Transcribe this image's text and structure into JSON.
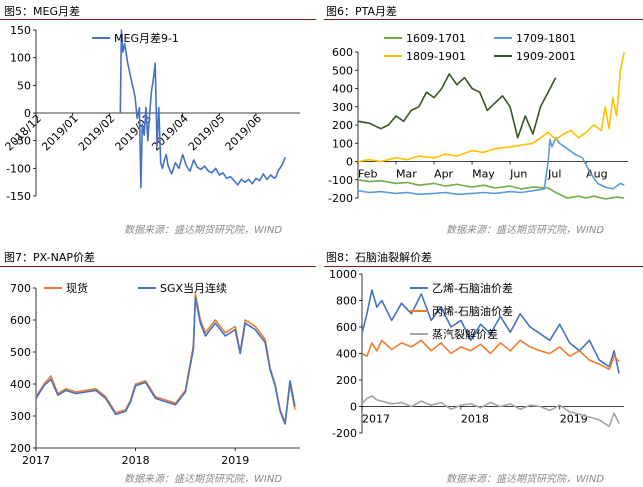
{
  "panels": {
    "p1": {
      "title": "图5：MEG月差"
    },
    "p2": {
      "title": "图6：PTA月差"
    },
    "p3": {
      "title": "图7：PX-NAP价差"
    },
    "p4": {
      "title": "图8：石脑油裂解价差"
    }
  },
  "source_left": "数据来源：盛达期货研究院，WIND",
  "source_right": "数据来源：盛达期货研究院，WIND",
  "colors": {
    "rule": "#7a1e20",
    "blue": "#4472c4",
    "orange": "#ed7d31",
    "gray": "#a5a5a5",
    "lightblue": "#5b9bd5",
    "green": "#70ad47",
    "yellow": "#ffc000",
    "darkgreen": "#375623"
  },
  "chart_data": [
    {
      "id": "meg",
      "type": "line",
      "ylim": [
        -150,
        150
      ],
      "yticks": [
        "150",
        "100",
        "50",
        "0",
        "-50",
        "-100",
        "-150"
      ],
      "ytick_values": [
        150,
        100,
        50,
        0,
        -50,
        -100,
        -150
      ],
      "x_tick_labels": [
        "2018/12",
        "2019/01",
        "2019/02",
        "2019/03",
        "2019/04",
        "2019/05",
        "2019/06"
      ],
      "x_tick_positions": [
        0,
        1,
        2,
        3,
        4,
        5,
        6
      ],
      "xlim": [
        0,
        7.2
      ],
      "legend": "top",
      "series": [
        {
          "name": "MEG月差9-1",
          "color": "#4472c4",
          "x": [
            2.3,
            2.33,
            2.37,
            2.42,
            2.5,
            2.6,
            2.7,
            2.76,
            2.82,
            2.86,
            2.9,
            2.95,
            3.0,
            3.05,
            3.1,
            3.15,
            3.2,
            3.25,
            3.3,
            3.35,
            3.4,
            3.45,
            3.5,
            3.55,
            3.6,
            3.7,
            3.8,
            3.9,
            4.0,
            4.1,
            4.2,
            4.3,
            4.4,
            4.5,
            4.6,
            4.7,
            4.8,
            4.9,
            5.0,
            5.1,
            5.2,
            5.3,
            5.4,
            5.5,
            5.6,
            5.7,
            5.8,
            5.9,
            6.0,
            6.1,
            6.2,
            6.3,
            6.4,
            6.5,
            6.55,
            6.6,
            6.7,
            6.8
          ],
          "y": [
            0,
            150,
            110,
            125,
            90,
            60,
            30,
            -10,
            10,
            -135,
            -20,
            -40,
            10,
            -50,
            0,
            40,
            60,
            90,
            -60,
            10,
            -90,
            -100,
            -85,
            -75,
            -95,
            -110,
            -90,
            -100,
            -75,
            -95,
            -105,
            -85,
            -98,
            -102,
            -96,
            -105,
            -108,
            -100,
            -112,
            -108,
            -118,
            -115,
            -122,
            -130,
            -120,
            -125,
            -120,
            -128,
            -118,
            -122,
            -110,
            -120,
            -112,
            -118,
            -115,
            -105,
            -95,
            -80
          ]
        }
      ]
    },
    {
      "id": "pta",
      "type": "line",
      "ylim": [
        -200,
        600
      ],
      "yticks": [
        "600",
        "500",
        "400",
        "300",
        "200",
        "100",
        "0",
        "-100",
        "-200"
      ],
      "ytick_values": [
        600,
        500,
        400,
        300,
        200,
        100,
        0,
        -100,
        -200
      ],
      "x_tick_labels": [
        "Feb",
        "Mar",
        "Apr",
        "May",
        "Jun",
        "Jul",
        "Aug"
      ],
      "x_tick_positions": [
        0,
        1,
        2,
        3,
        4,
        5,
        6
      ],
      "xlim": [
        0,
        7.1
      ],
      "legend": "top",
      "series": [
        {
          "name": "1609-1701",
          "color": "#70ad47",
          "x": [
            0,
            0.3,
            0.6,
            1.0,
            1.3,
            1.6,
            2.0,
            2.3,
            2.6,
            3.0,
            3.3,
            3.6,
            4.0,
            4.3,
            4.6,
            5.0,
            5.2,
            5.5,
            5.8,
            6.0,
            6.2,
            6.5,
            6.8,
            7.0
          ],
          "y": [
            -100,
            -110,
            -105,
            -120,
            -115,
            -130,
            -120,
            -135,
            -125,
            -140,
            -130,
            -145,
            -135,
            -150,
            -140,
            -145,
            -170,
            -200,
            -190,
            -200,
            -190,
            -205,
            -195,
            -200
          ]
        },
        {
          "name": "1709-1801",
          "color": "#5b9bd5",
          "x": [
            0,
            0.3,
            0.6,
            1.0,
            1.3,
            1.6,
            2.0,
            2.3,
            2.6,
            3.0,
            3.3,
            3.6,
            4.0,
            4.3,
            4.6,
            4.9,
            5.0,
            5.05,
            5.1,
            5.2,
            5.3,
            5.5,
            5.7,
            5.9,
            6.1,
            6.3,
            6.5,
            6.7,
            6.9,
            7.0
          ],
          "y": [
            -160,
            -170,
            -165,
            -175,
            -170,
            -180,
            -175,
            -170,
            -180,
            -175,
            -170,
            -175,
            -165,
            -170,
            -160,
            -150,
            0,
            120,
            80,
            130,
            100,
            70,
            40,
            20,
            -60,
            -120,
            -140,
            -150,
            -120,
            -130
          ]
        },
        {
          "name": "1809-1901",
          "color": "#ffc000",
          "x": [
            0,
            0.3,
            0.6,
            1.0,
            1.3,
            1.6,
            2.0,
            2.3,
            2.6,
            3.0,
            3.3,
            3.6,
            4.0,
            4.3,
            4.6,
            5.0,
            5.2,
            5.4,
            5.6,
            5.8,
            6.0,
            6.2,
            6.4,
            6.5,
            6.6,
            6.7,
            6.8,
            6.9,
            7.0
          ],
          "y": [
            0,
            10,
            0,
            20,
            10,
            30,
            20,
            40,
            30,
            60,
            50,
            70,
            80,
            90,
            100,
            160,
            120,
            150,
            170,
            130,
            160,
            200,
            170,
            300,
            180,
            350,
            250,
            500,
            600
          ]
        },
        {
          "name": "1909-2001",
          "color": "#375623",
          "x": [
            0,
            0.3,
            0.6,
            0.8,
            1.0,
            1.2,
            1.4,
            1.6,
            1.8,
            2.0,
            2.2,
            2.4,
            2.6,
            2.8,
            3.0,
            3.2,
            3.4,
            3.6,
            3.8,
            4.0,
            4.2,
            4.4,
            4.6,
            4.8,
            5.0,
            5.2
          ],
          "y": [
            220,
            210,
            180,
            200,
            250,
            220,
            280,
            300,
            380,
            350,
            400,
            480,
            420,
            460,
            400,
            380,
            280,
            320,
            360,
            300,
            130,
            250,
            150,
            300,
            380,
            460
          ]
        }
      ]
    },
    {
      "id": "pxnap",
      "type": "line",
      "ylim": [
        200,
        700
      ],
      "yticks": [
        "700",
        "600",
        "500",
        "400",
        "300",
        "200"
      ],
      "ytick_values": [
        700,
        600,
        500,
        400,
        300,
        200
      ],
      "x_tick_labels": [
        "2017",
        "2018",
        "2019"
      ],
      "x_tick_positions": [
        0,
        1,
        2
      ],
      "xlim": [
        0,
        2.65
      ],
      "legend": "top-left",
      "series": [
        {
          "name": "现货",
          "color": "#ed7d31",
          "x": [
            0,
            0.08,
            0.15,
            0.22,
            0.3,
            0.4,
            0.5,
            0.6,
            0.7,
            0.8,
            0.9,
            0.95,
            1.0,
            1.1,
            1.2,
            1.3,
            1.4,
            1.5,
            1.58,
            1.6,
            1.65,
            1.7,
            1.8,
            1.9,
            2.0,
            2.05,
            2.1,
            2.2,
            2.3,
            2.35,
            2.4,
            2.45,
            2.5,
            2.55,
            2.6
          ],
          "y": [
            360,
            400,
            425,
            370,
            385,
            375,
            380,
            385,
            360,
            310,
            320,
            350,
            400,
            410,
            360,
            350,
            340,
            380,
            520,
            680,
            600,
            560,
            600,
            560,
            580,
            500,
            600,
            580,
            540,
            450,
            400,
            320,
            280,
            400,
            320
          ]
        },
        {
          "name": "SGX当月连续",
          "color": "#4472c4",
          "x": [
            0,
            0.08,
            0.15,
            0.22,
            0.3,
            0.4,
            0.5,
            0.6,
            0.7,
            0.8,
            0.9,
            0.95,
            1.0,
            1.1,
            1.2,
            1.3,
            1.4,
            1.5,
            1.58,
            1.6,
            1.65,
            1.7,
            1.8,
            1.9,
            2.0,
            2.05,
            2.1,
            2.2,
            2.3,
            2.35,
            2.4,
            2.45,
            2.5,
            2.55,
            2.6
          ],
          "y": [
            355,
            395,
            415,
            365,
            380,
            370,
            375,
            380,
            355,
            305,
            315,
            345,
            395,
            405,
            355,
            345,
            335,
            375,
            510,
            670,
            590,
            550,
            590,
            550,
            570,
            495,
            590,
            570,
            530,
            445,
            395,
            315,
            275,
            410,
            330
          ]
        }
      ]
    },
    {
      "id": "naphtha",
      "type": "line",
      "ylim": [
        -200,
        1000
      ],
      "yticks": [
        "1000",
        "800",
        "600",
        "400",
        "200",
        "0",
        "-200"
      ],
      "ytick_values": [
        1000,
        800,
        600,
        400,
        200,
        0,
        -200
      ],
      "x_tick_labels": [
        "2017",
        "2018",
        "2019"
      ],
      "x_tick_positions": [
        0,
        1,
        2
      ],
      "xlim": [
        0,
        2.65
      ],
      "legend": "top-left",
      "series": [
        {
          "name": "乙烯-石脑油价差",
          "color": "#4472c4",
          "x": [
            0,
            0.05,
            0.1,
            0.15,
            0.2,
            0.3,
            0.4,
            0.5,
            0.6,
            0.7,
            0.8,
            0.9,
            1.0,
            1.1,
            1.2,
            1.3,
            1.4,
            1.5,
            1.6,
            1.7,
            1.8,
            1.9,
            2.0,
            2.1,
            2.2,
            2.3,
            2.4,
            2.5,
            2.55,
            2.6
          ],
          "y": [
            550,
            700,
            880,
            750,
            800,
            650,
            780,
            700,
            850,
            650,
            750,
            600,
            650,
            500,
            620,
            550,
            680,
            560,
            700,
            600,
            550,
            500,
            620,
            480,
            420,
            500,
            350,
            300,
            420,
            250
          ]
        },
        {
          "name": "丙烯-石脑油价差",
          "color": "#ed7d31",
          "x": [
            0,
            0.05,
            0.1,
            0.15,
            0.2,
            0.3,
            0.4,
            0.5,
            0.6,
            0.7,
            0.8,
            0.9,
            1.0,
            1.1,
            1.2,
            1.3,
            1.4,
            1.5,
            1.6,
            1.7,
            1.8,
            1.9,
            2.0,
            2.1,
            2.2,
            2.3,
            2.4,
            2.5,
            2.55,
            2.6
          ],
          "y": [
            400,
            380,
            480,
            420,
            500,
            430,
            480,
            450,
            500,
            420,
            480,
            400,
            450,
            420,
            470,
            400,
            480,
            420,
            500,
            450,
            420,
            400,
            450,
            380,
            420,
            350,
            320,
            280,
            380,
            340
          ]
        },
        {
          "name": "蒸汽裂解价差",
          "color": "#a5a5a5",
          "x": [
            0,
            0.05,
            0.1,
            0.15,
            0.2,
            0.3,
            0.4,
            0.5,
            0.6,
            0.7,
            0.8,
            0.9,
            1.0,
            1.1,
            1.2,
            1.3,
            1.4,
            1.5,
            1.6,
            1.7,
            1.8,
            1.9,
            2.0,
            2.1,
            2.2,
            2.3,
            2.4,
            2.5,
            2.55,
            2.6
          ],
          "y": [
            20,
            60,
            80,
            50,
            40,
            20,
            30,
            0,
            40,
            10,
            30,
            -20,
            10,
            20,
            -10,
            30,
            0,
            20,
            -20,
            10,
            0,
            -30,
            10,
            -40,
            -60,
            -80,
            -100,
            -150,
            -50,
            -130
          ]
        }
      ]
    }
  ]
}
